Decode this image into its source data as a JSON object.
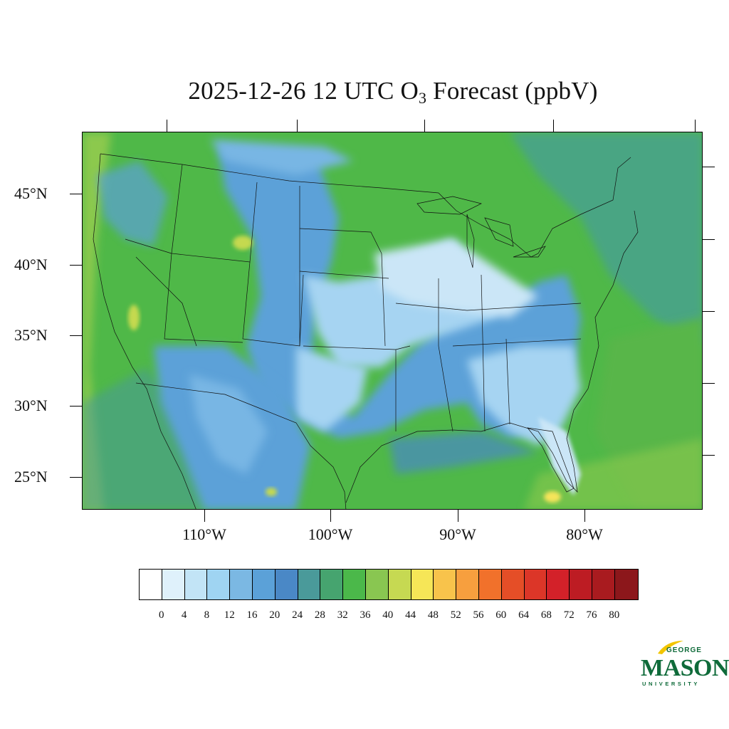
{
  "title": {
    "prefix": "2025-12-26 12 UTC O",
    "subscript": "3",
    "suffix": " Forecast (ppbV)"
  },
  "map": {
    "lat_labels": [
      "45°N",
      "40°N",
      "35°N",
      "30°N",
      "25°N"
    ],
    "lon_labels": [
      "110°W",
      "100°W",
      "90°W",
      "80°W"
    ],
    "base_color": "#4fb848",
    "ocean_east_color": "#4aa583",
    "low_ozone_colors": [
      "#5b9fd6",
      "#78b6e4",
      "#a6d4f2",
      "#cbe6f7"
    ],
    "high_ozone_colors": [
      "#c5d94f",
      "#f5e45a",
      "#8cc94e"
    ]
  },
  "colorbar": {
    "colors": [
      "#ffffff",
      "#dff1fb",
      "#c2e4f6",
      "#9fd4f2",
      "#7bb8e3",
      "#5ba1d8",
      "#4a88c6",
      "#4a9a9a",
      "#46a46f",
      "#4bb84a",
      "#89c651",
      "#c6d952",
      "#f6e657",
      "#f8c34b",
      "#f79f3e",
      "#f1712b",
      "#e54e27",
      "#dc3628",
      "#d32129",
      "#bd1c23",
      "#a91b1f",
      "#8c171b"
    ],
    "labels": [
      "0",
      "4",
      "8",
      "12",
      "16",
      "20",
      "24",
      "28",
      "32",
      "36",
      "40",
      "44",
      "48",
      "52",
      "56",
      "60",
      "64",
      "68",
      "72",
      "76",
      "80"
    ]
  },
  "logo": {
    "line1": "GEORGE",
    "line2": "MASON",
    "line3": "UNIVERSITY",
    "color": "#0f6b3a",
    "accent": "#f2c500"
  }
}
